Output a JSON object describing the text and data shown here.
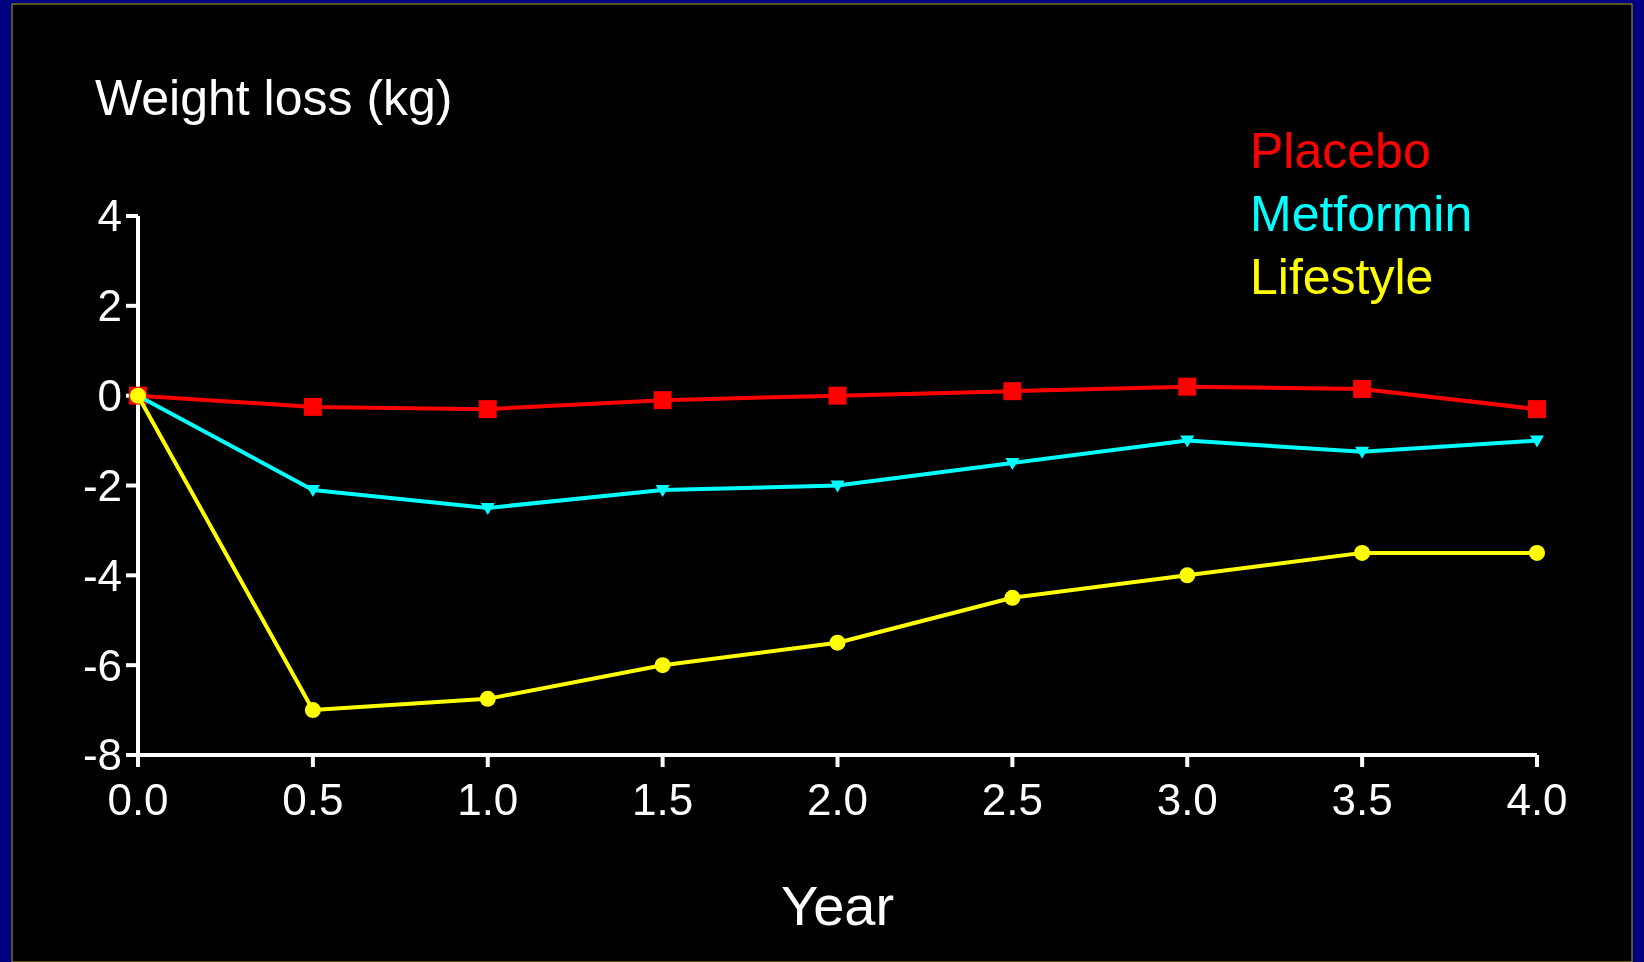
{
  "chart_data": {
    "type": "line",
    "ylabel": "Weight loss (kg)",
    "xlabel": "Year",
    "x": [
      0,
      0.5,
      1,
      1.5,
      2,
      2.5,
      3,
      3.5,
      4
    ],
    "series": [
      {
        "name": "Placebo",
        "color": "#ff0000",
        "marker": "square",
        "values": [
          0,
          -0.25,
          -0.3,
          -0.1,
          0,
          0.1,
          0.2,
          0.15,
          -0.3
        ]
      },
      {
        "name": "Metformin",
        "color": "#00ffff",
        "marker": "triangle",
        "values": [
          0,
          -2.1,
          -2.5,
          -2.1,
          -2,
          -1.5,
          -1,
          -1.25,
          -1
        ]
      },
      {
        "name": "Lifestyle",
        "color": "#ffff00",
        "marker": "circle",
        "values": [
          0,
          -7,
          -6.75,
          -6,
          -5.5,
          -4.5,
          -4,
          -3.5,
          -3.5
        ]
      }
    ],
    "xlim": [
      0,
      4
    ],
    "xticks": [
      {
        "value": 0,
        "label": "0.0"
      },
      {
        "value": 0.5,
        "label": "0.5"
      },
      {
        "value": 1,
        "label": "1.0"
      },
      {
        "value": 1.5,
        "label": "1.5"
      },
      {
        "value": 2,
        "label": "2.0"
      },
      {
        "value": 2.5,
        "label": "2.5"
      },
      {
        "value": 3,
        "label": "3.0"
      },
      {
        "value": 3.5,
        "label": "3.5"
      },
      {
        "value": 4,
        "label": "4.0"
      }
    ],
    "ylim": [
      -8,
      4
    ],
    "yticks": [
      -8,
      -6,
      -4,
      -2,
      0,
      2,
      4
    ],
    "legend": "top right",
    "grid": false,
    "line_style": "solid"
  }
}
